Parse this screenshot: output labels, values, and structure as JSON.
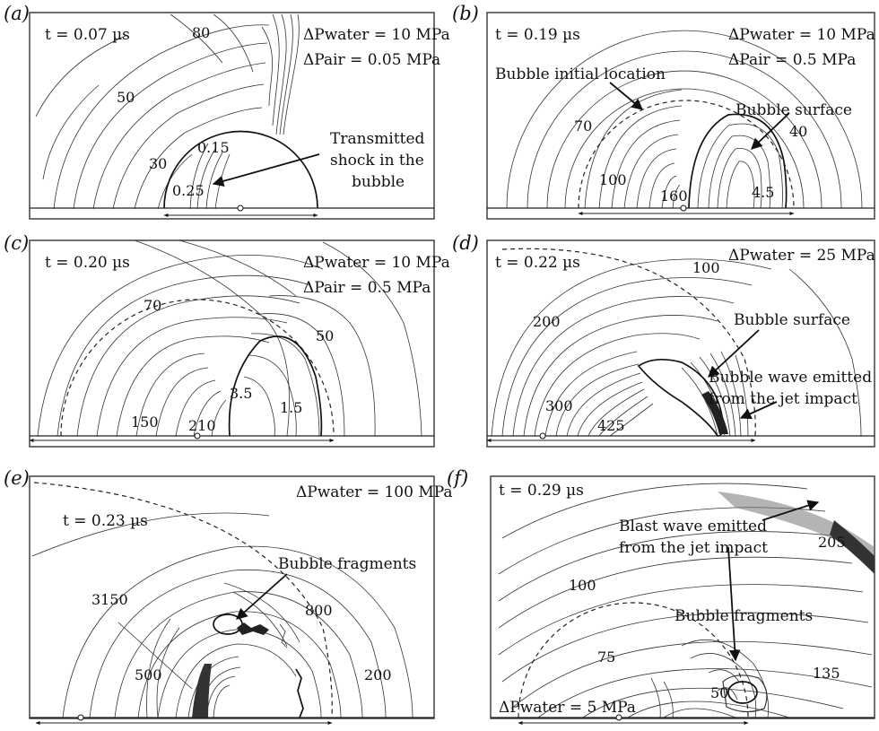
{
  "panels": [
    {
      "id": "a",
      "label": "(a)",
      "time": "t = 0.07 µs",
      "dp_water": "ΔPwater = 10 MPa",
      "dp_air": "ΔPair = 0.05 MPa",
      "levels": [
        "80",
        "50",
        "30",
        "0.15",
        "0.25"
      ],
      "annotations": [
        "Transmitted",
        "shock in the",
        "bubble"
      ]
    },
    {
      "id": "b",
      "label": "(b)",
      "time": "t = 0.19 µs",
      "dp_water": "ΔPwater = 10 MPa",
      "dp_air": "ΔPair = 0.5 MPa",
      "levels": [
        "70",
        "40",
        "100",
        "160",
        "4.5"
      ],
      "annotations": [
        "Bubble initial location",
        "Bubble surface"
      ]
    },
    {
      "id": "c",
      "label": "(c)",
      "time": "t = 0.20 µs",
      "dp_water": "ΔPwater = 10 MPa",
      "dp_air": "ΔPair = 0.5 MPa",
      "levels": [
        "70",
        "50",
        "3.5",
        "1.5",
        "150",
        "210"
      ],
      "annotations": []
    },
    {
      "id": "d",
      "label": "(d)",
      "time": "t = 0.22 µs",
      "dp_water": "ΔPwater = 25 MPa",
      "dp_air": "",
      "levels": [
        "100",
        "200",
        "300",
        "425"
      ],
      "annotations": [
        "Bubble surface",
        "Bubble wave emitted",
        "from the jet impact"
      ]
    },
    {
      "id": "e",
      "label": "(e)",
      "time": "t = 0.23 µs",
      "dp_water": "ΔPwater = 100 MPa",
      "dp_air": "",
      "levels": [
        "3150",
        "800",
        "500",
        "200"
      ],
      "annotations": [
        "Bubble fragments"
      ]
    },
    {
      "id": "f",
      "label": "(f)",
      "time": "t = 0.29 µs",
      "dp_water": "ΔPwater = 5 MPa",
      "dp_air": "",
      "levels": [
        "100",
        "205",
        "75",
        "50",
        "135"
      ],
      "annotations": [
        "Blast wave emitted",
        "from the jet impact",
        "Bubble fragments"
      ]
    }
  ]
}
